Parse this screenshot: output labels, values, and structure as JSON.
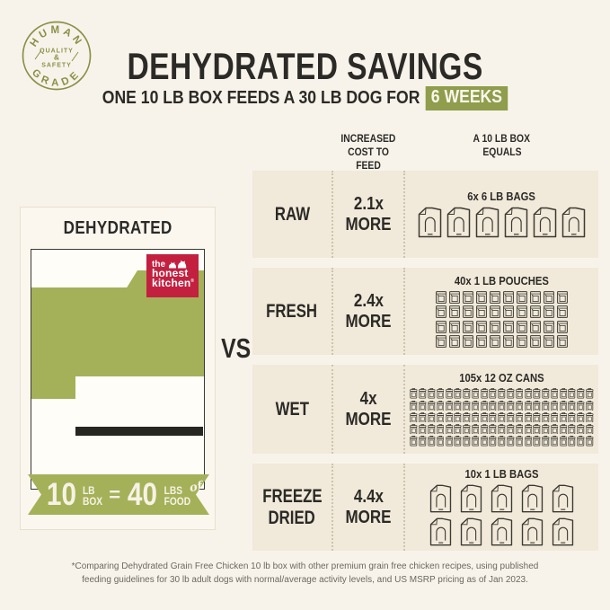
{
  "colors": {
    "page_bg": "#f8f3ea",
    "row_bg": "#f1e9d9",
    "olive": "#a4b159",
    "olive_dark": "#8f9d4c",
    "badge_olive": "#8a9048",
    "brand_red": "#c32040",
    "ink": "#2b2a27",
    "icon_ink": "#3b3a33"
  },
  "badge": {
    "arc_top": "HUMAN",
    "arc_bottom": "GRADE",
    "center_line1": "QUALITY",
    "center_amp": "&",
    "center_line2": "SAFETY"
  },
  "header": {
    "title": "DEHYDRATED SAVINGS",
    "subtitle": "ONE 10 LB BOX FEEDS A 30 LB DOG FOR",
    "highlight": "6 WEEKS"
  },
  "product_card": {
    "title": "DEHYDRATED",
    "logo": {
      "line1": "the",
      "line2": "honest",
      "line3": "kitchen",
      "reg": "®"
    },
    "banner": {
      "value1": "10",
      "unit1_top": "LB",
      "unit1_bottom": "BOX",
      "equals": "=",
      "value2": "40",
      "unit2_top": "LBS",
      "unit2_of": "of",
      "unit2_bottom": "FOOD"
    }
  },
  "vs": "VS",
  "comparison": {
    "col_headers": [
      {
        "line1": "INCREASED",
        "line2": "COST TO FEED"
      },
      {
        "line1": "A 10 LB BOX",
        "line2": "EQUALS"
      }
    ],
    "rows": [
      {
        "name": "raw",
        "label_lines": [
          "RAW"
        ],
        "multiplier": "2.1x",
        "more": "MORE",
        "caption": "6x 6 LB BAGS",
        "icon": "bag",
        "count": 6,
        "cols": 6
      },
      {
        "name": "fresh",
        "label_lines": [
          "FRESH"
        ],
        "multiplier": "2.4x",
        "more": "MORE",
        "caption": "40x 1 LB POUCHES",
        "icon": "pouch",
        "count": 40,
        "cols": 10
      },
      {
        "name": "wet",
        "label_lines": [
          "WET"
        ],
        "multiplier": "4x",
        "more": "MORE",
        "caption": "105x 12 OZ CANS",
        "icon": "can",
        "count": 105,
        "cols": 21
      },
      {
        "name": "freeze-dried",
        "label_lines": [
          "FREEZE",
          "DRIED"
        ],
        "multiplier": "4.4x",
        "more": "MORE",
        "caption": "10x 1 LB BAGS",
        "icon": "bag",
        "count": 10,
        "cols": 5
      }
    ]
  },
  "footnote": {
    "line1": "*Comparing Dehydrated Grain Free Chicken 10 lb box with other premium grain free chicken recipes, using published",
    "line2": "feeding guidelines for 30 lb adult dogs with normal/average activity levels, and US MSRP pricing as of Jan 2023."
  }
}
